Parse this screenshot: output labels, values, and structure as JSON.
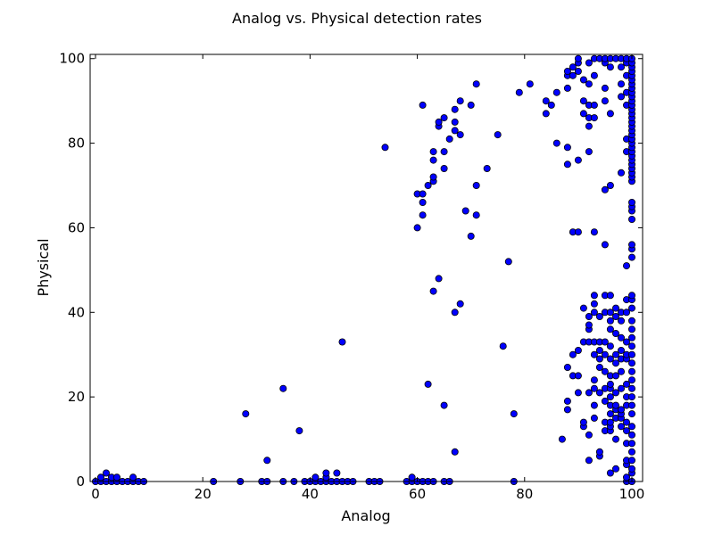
{
  "chart_data": {
    "type": "scatter",
    "title": "Analog vs. Physical detection rates",
    "xlabel": "Analog",
    "ylabel": "Physical",
    "xlim": [
      -1,
      102
    ],
    "ylim": [
      0,
      101
    ],
    "xticks": [
      0,
      20,
      40,
      60,
      80,
      100
    ],
    "yticks": [
      0,
      20,
      40,
      60,
      80,
      100
    ],
    "grid": false,
    "marker_color": "#0000ff",
    "marker_edge": "#000000",
    "series": [
      {
        "points": [
          [
            0,
            0
          ],
          [
            1,
            0
          ],
          [
            1,
            1
          ],
          [
            2,
            0
          ],
          [
            2,
            2
          ],
          [
            3,
            0
          ],
          [
            3,
            1
          ],
          [
            4,
            0
          ],
          [
            4,
            1
          ],
          [
            5,
            0
          ],
          [
            6,
            0
          ],
          [
            7,
            0
          ],
          [
            7,
            1
          ],
          [
            8,
            0
          ],
          [
            9,
            0
          ],
          [
            22,
            0
          ],
          [
            27,
            0
          ],
          [
            28,
            16
          ],
          [
            31,
            0
          ],
          [
            32,
            0
          ],
          [
            32,
            5
          ],
          [
            35,
            0
          ],
          [
            35,
            22
          ],
          [
            37,
            0
          ],
          [
            38,
            12
          ],
          [
            39,
            0
          ],
          [
            40,
            0
          ],
          [
            41,
            0
          ],
          [
            41,
            1
          ],
          [
            42,
            0
          ],
          [
            43,
            0
          ],
          [
            43,
            1
          ],
          [
            43,
            2
          ],
          [
            44,
            0
          ],
          [
            45,
            0
          ],
          [
            45,
            2
          ],
          [
            46,
            0
          ],
          [
            46,
            33
          ],
          [
            47,
            0
          ],
          [
            48,
            0
          ],
          [
            51,
            0
          ],
          [
            52,
            0
          ],
          [
            53,
            0
          ],
          [
            54,
            79
          ],
          [
            58,
            0
          ],
          [
            59,
            0
          ],
          [
            59,
            1
          ],
          [
            60,
            0
          ],
          [
            60,
            60
          ],
          [
            60,
            68
          ],
          [
            61,
            0
          ],
          [
            61,
            63
          ],
          [
            61,
            66
          ],
          [
            61,
            68
          ],
          [
            61,
            89
          ],
          [
            62,
            0
          ],
          [
            62,
            23
          ],
          [
            62,
            70
          ],
          [
            63,
            0
          ],
          [
            63,
            45
          ],
          [
            63,
            71
          ],
          [
            63,
            72
          ],
          [
            63,
            76
          ],
          [
            63,
            78
          ],
          [
            64,
            48
          ],
          [
            64,
            84
          ],
          [
            64,
            85
          ],
          [
            65,
            0
          ],
          [
            65,
            18
          ],
          [
            65,
            74
          ],
          [
            65,
            78
          ],
          [
            65,
            86
          ],
          [
            66,
            0
          ],
          [
            66,
            81
          ],
          [
            67,
            7
          ],
          [
            67,
            40
          ],
          [
            67,
            83
          ],
          [
            67,
            85
          ],
          [
            67,
            88
          ],
          [
            68,
            42
          ],
          [
            68,
            82
          ],
          [
            68,
            90
          ],
          [
            69,
            64
          ],
          [
            70,
            58
          ],
          [
            70,
            89
          ],
          [
            71,
            63
          ],
          [
            71,
            70
          ],
          [
            71,
            94
          ],
          [
            73,
            74
          ],
          [
            75,
            82
          ],
          [
            76,
            32
          ],
          [
            77,
            52
          ],
          [
            78,
            0
          ],
          [
            78,
            16
          ],
          [
            79,
            92
          ],
          [
            81,
            94
          ],
          [
            84,
            87
          ],
          [
            84,
            90
          ],
          [
            85,
            89
          ],
          [
            86,
            80
          ],
          [
            86,
            92
          ],
          [
            87,
            10
          ],
          [
            88,
            17
          ],
          [
            88,
            19
          ],
          [
            88,
            27
          ],
          [
            88,
            75
          ],
          [
            88,
            79
          ],
          [
            88,
            93
          ],
          [
            88,
            96
          ],
          [
            88,
            97
          ],
          [
            89,
            25
          ],
          [
            89,
            30
          ],
          [
            89,
            59
          ],
          [
            89,
            96
          ],
          [
            89,
            98
          ],
          [
            90,
            21
          ],
          [
            90,
            25
          ],
          [
            90,
            31
          ],
          [
            90,
            59
          ],
          [
            90,
            76
          ],
          [
            90,
            97
          ],
          [
            90,
            99
          ],
          [
            90,
            100
          ],
          [
            91,
            13
          ],
          [
            91,
            14
          ],
          [
            91,
            33
          ],
          [
            91,
            41
          ],
          [
            91,
            87
          ],
          [
            91,
            90
          ],
          [
            91,
            95
          ],
          [
            92,
            5
          ],
          [
            92,
            11
          ],
          [
            92,
            21
          ],
          [
            92,
            33
          ],
          [
            92,
            36
          ],
          [
            92,
            37
          ],
          [
            92,
            39
          ],
          [
            92,
            78
          ],
          [
            92,
            84
          ],
          [
            92,
            86
          ],
          [
            92,
            89
          ],
          [
            92,
            94
          ],
          [
            92,
            99
          ],
          [
            93,
            15
          ],
          [
            93,
            18
          ],
          [
            93,
            22
          ],
          [
            93,
            24
          ],
          [
            93,
            30
          ],
          [
            93,
            33
          ],
          [
            93,
            40
          ],
          [
            93,
            42
          ],
          [
            93,
            44
          ],
          [
            93,
            59
          ],
          [
            93,
            86
          ],
          [
            93,
            89
          ],
          [
            93,
            96
          ],
          [
            93,
            100
          ],
          [
            94,
            6
          ],
          [
            94,
            7
          ],
          [
            94,
            21
          ],
          [
            94,
            27
          ],
          [
            94,
            29
          ],
          [
            94,
            31
          ],
          [
            94,
            33
          ],
          [
            94,
            39
          ],
          [
            94,
            100
          ],
          [
            95,
            12
          ],
          [
            95,
            14
          ],
          [
            95,
            19
          ],
          [
            95,
            22
          ],
          [
            95,
            26
          ],
          [
            95,
            30
          ],
          [
            95,
            33
          ],
          [
            95,
            40
          ],
          [
            95,
            44
          ],
          [
            95,
            56
          ],
          [
            95,
            69
          ],
          [
            95,
            90
          ],
          [
            95,
            93
          ],
          [
            95,
            99
          ],
          [
            95,
            100
          ],
          [
            96,
            2
          ],
          [
            96,
            12
          ],
          [
            96,
            13
          ],
          [
            96,
            14
          ],
          [
            96,
            16
          ],
          [
            96,
            18
          ],
          [
            96,
            20
          ],
          [
            96,
            22
          ],
          [
            96,
            23
          ],
          [
            96,
            25
          ],
          [
            96,
            29
          ],
          [
            96,
            32
          ],
          [
            96,
            36
          ],
          [
            96,
            38
          ],
          [
            96,
            40
          ],
          [
            96,
            44
          ],
          [
            96,
            70
          ],
          [
            96,
            87
          ],
          [
            96,
            98
          ],
          [
            96,
            100
          ],
          [
            97,
            3
          ],
          [
            97,
            10
          ],
          [
            97,
            15
          ],
          [
            97,
            17
          ],
          [
            97,
            18
          ],
          [
            97,
            21
          ],
          [
            97,
            25
          ],
          [
            97,
            28
          ],
          [
            97,
            30
          ],
          [
            97,
            35
          ],
          [
            97,
            39
          ],
          [
            97,
            41
          ],
          [
            97,
            100
          ],
          [
            98,
            13
          ],
          [
            98,
            15
          ],
          [
            98,
            16
          ],
          [
            98,
            17
          ],
          [
            98,
            22
          ],
          [
            98,
            26
          ],
          [
            98,
            29
          ],
          [
            98,
            31
          ],
          [
            98,
            34
          ],
          [
            98,
            38
          ],
          [
            98,
            40
          ],
          [
            98,
            73
          ],
          [
            98,
            91
          ],
          [
            98,
            94
          ],
          [
            98,
            98
          ],
          [
            98,
            100
          ],
          [
            99,
            0
          ],
          [
            99,
            1
          ],
          [
            99,
            4
          ],
          [
            99,
            5
          ],
          [
            99,
            9
          ],
          [
            99,
            12
          ],
          [
            99,
            14
          ],
          [
            99,
            18
          ],
          [
            99,
            20
          ],
          [
            99,
            23
          ],
          [
            99,
            29
          ],
          [
            99,
            30
          ],
          [
            99,
            33
          ],
          [
            99,
            40
          ],
          [
            99,
            43
          ],
          [
            99,
            51
          ],
          [
            99,
            78
          ],
          [
            99,
            81
          ],
          [
            99,
            89
          ],
          [
            99,
            92
          ],
          [
            99,
            96
          ],
          [
            99,
            99
          ],
          [
            99,
            100
          ],
          [
            100,
            0
          ],
          [
            100,
            2
          ],
          [
            100,
            3
          ],
          [
            100,
            5
          ],
          [
            100,
            7
          ],
          [
            100,
            9
          ],
          [
            100,
            11
          ],
          [
            100,
            13
          ],
          [
            100,
            16
          ],
          [
            100,
            18
          ],
          [
            100,
            20
          ],
          [
            100,
            22
          ],
          [
            100,
            24
          ],
          [
            100,
            26
          ],
          [
            100,
            28
          ],
          [
            100,
            30
          ],
          [
            100,
            32
          ],
          [
            100,
            34
          ],
          [
            100,
            36
          ],
          [
            100,
            38
          ],
          [
            100,
            41
          ],
          [
            100,
            43
          ],
          [
            100,
            44
          ],
          [
            100,
            53
          ],
          [
            100,
            55
          ],
          [
            100,
            56
          ],
          [
            100,
            62
          ],
          [
            100,
            64
          ],
          [
            100,
            65
          ],
          [
            100,
            66
          ],
          [
            100,
            71
          ],
          [
            100,
            72
          ],
          [
            100,
            73
          ],
          [
            100,
            74
          ],
          [
            100,
            75
          ],
          [
            100,
            76
          ],
          [
            100,
            77
          ],
          [
            100,
            78
          ],
          [
            100,
            79
          ],
          [
            100,
            80
          ],
          [
            100,
            81
          ],
          [
            100,
            82
          ],
          [
            100,
            83
          ],
          [
            100,
            84
          ],
          [
            100,
            85
          ],
          [
            100,
            86
          ],
          [
            100,
            87
          ],
          [
            100,
            88
          ],
          [
            100,
            89
          ],
          [
            100,
            90
          ],
          [
            100,
            91
          ],
          [
            100,
            92
          ],
          [
            100,
            93
          ],
          [
            100,
            94
          ],
          [
            100,
            95
          ],
          [
            100,
            96
          ],
          [
            100,
            97
          ],
          [
            100,
            98
          ],
          [
            100,
            99
          ],
          [
            100,
            100
          ]
        ]
      }
    ]
  }
}
